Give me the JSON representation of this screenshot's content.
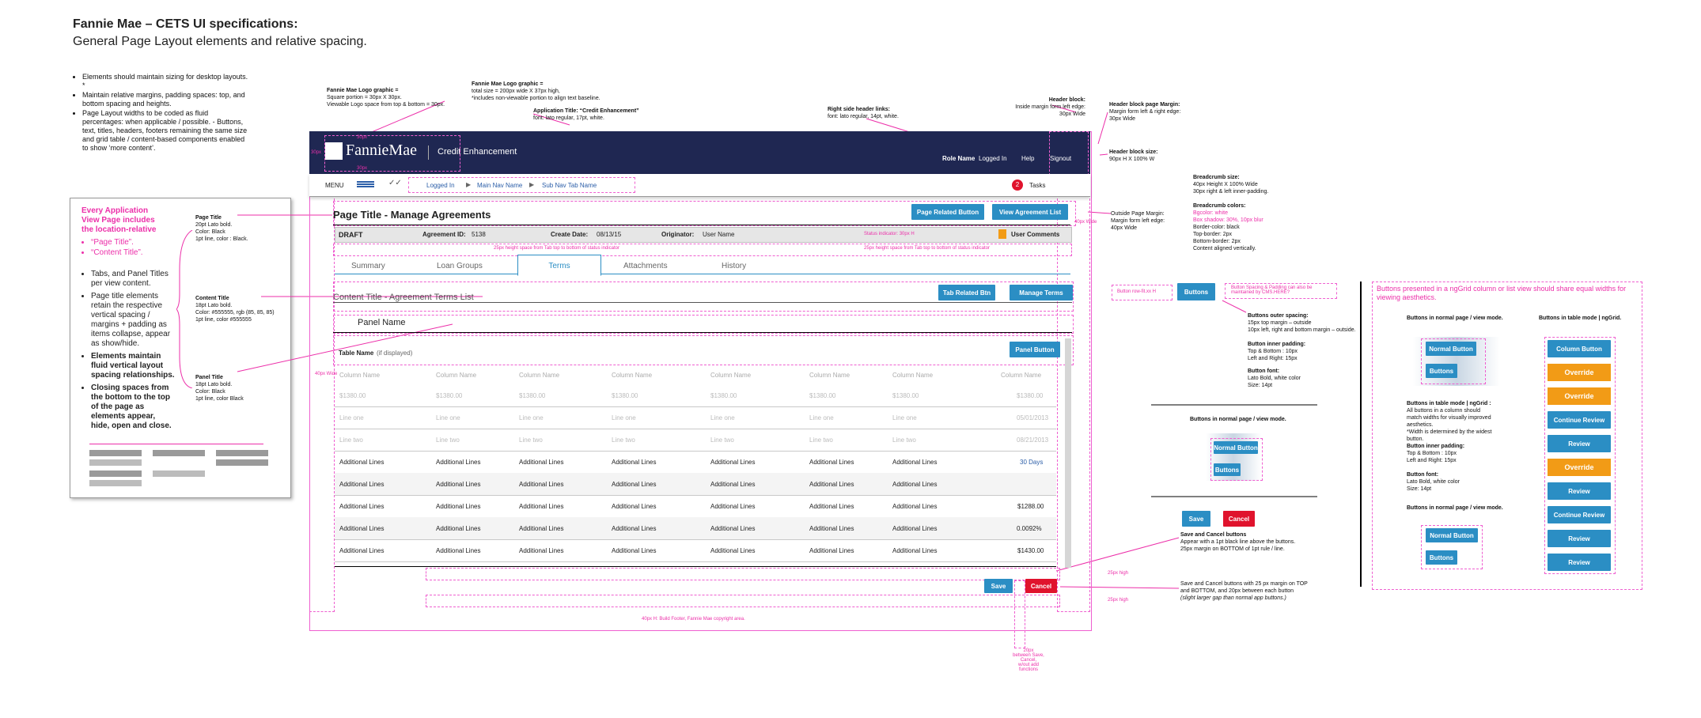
{
  "title": "Fannie Mae – CETS UI specifications:",
  "subtitle": "General Page Layout elements and relative spacing.",
  "intro_bullets": [
    "Elements should maintain sizing for desktop layouts. *",
    "Maintain relative margins, padding spaces: top, and bottom spacing and heights.",
    "Page Layout widths to be coded as fluid percentages: when applicable / possible. - Buttons, text, titles, headers, footers remaining the same size and grid table / content-based components enabled to show ‘more content’."
  ],
  "left_box": {
    "heading": "Every Application View Page includes the location-relative",
    "pink_items": [
      "“Page Title”.",
      "“Content Title”."
    ],
    "bullets": [
      "Tabs, and Panel Titles per view content.",
      "Page title elements retain the respective vertical spacing / margins + padding as items collapse, appear as show/hide."
    ],
    "bold_bullets": [
      "Elements maintain fluid vertical layout spacing relationships.",
      "Closing spaces from the bottom to the top of the page as elements appear, hide, open and close."
    ],
    "page_title_spec": [
      "Page Title",
      "20pt Lato bold.",
      "Color: Black",
      "1pt line, color : Black."
    ],
    "content_title_spec": [
      "Content Title",
      "18pt Lato bold.",
      "Color: #555555, rgb (85, 85, 85)",
      "1pt line, color #555555"
    ],
    "panel_title_spec": [
      "Panel Title",
      "18pt Lato bold.",
      "Color: Black",
      "1pt line, color Black"
    ]
  },
  "top_notes": {
    "logo1": [
      "Fannie Mae Logo graphic =",
      "Square portion = 30px X 30px.",
      "Viewable Logo space from top & bottom = 30px."
    ],
    "logo2": [
      "Fannie Mae Logo graphic =",
      "total size = 200px wide X 37px high,",
      "*includes non-viewable portion to align text baseline."
    ],
    "apptitle": [
      "Application Title: “Credit Enhancement”",
      "font: lato regular, 17pt, white."
    ],
    "header_links": [
      "Right side header links:",
      "font: lato regular, 14pt, white."
    ],
    "header_block": [
      "Header block:",
      "Inside margin form left edge:",
      "30px Wide"
    ],
    "header_margin": [
      "Header block page Margin:",
      "Margin form left & right edge:",
      "30px Wide"
    ],
    "header_size": [
      "Header block size:",
      "90px H X 100% W"
    ],
    "breadcrumb_size": [
      "Breadcrumb size:",
      "40px Height X 100% Wide",
      "30px right & left inner-padding."
    ],
    "breadcrumb_colors": [
      "Breadcrumb colors:",
      "Bgcolor: white",
      "Box shadow: 30%, 10px blur",
      "Border-color: black",
      "Top-border: 2px",
      "Bottom-border: 2px",
      "Content aligned vertically."
    ],
    "outside_margin": [
      "Outside Page Margin:",
      "Margin form left edge:",
      "40px Wide"
    ],
    "buttons_outer": [
      "Buttons outer spacing:",
      "15px top margin – outside",
      "10px left, right and bottom margin – outside."
    ],
    "buttons_inner": [
      "Button inner padding:",
      "Top & Bottom : 10px",
      "Left and Right: 15px"
    ],
    "buttons_font": [
      "Button font:",
      "Lato Bold, white color",
      "Size: 14pt"
    ],
    "save_cancel1": [
      "Save and Cancel buttons",
      "Appear with a 1pt black line above the buttons.",
      "25px margin on BOTTOM of 1pt rule / line."
    ],
    "save_cancel2": [
      "Save and Cancel buttons with 25 px margin on TOP and BOTTOM, and 20px between each button",
      "(slight larger gap than normal app buttons.)"
    ]
  },
  "mock": {
    "logo": "FannieMae",
    "app_title": "Credit Enhancement",
    "header_links": [
      "Role Name",
      "Logged In",
      "Help",
      "Signout"
    ],
    "menu": "MENU",
    "breadcrumbs": [
      "Logged In",
      "Main Nav Name",
      "Sub Nav Tab Name"
    ],
    "tasks_count": "2",
    "tasks_label": "Tasks",
    "page_title": "Page Title - Manage Agreements",
    "page_buttons": [
      "Page Related Button",
      "View Agreement List"
    ],
    "status": {
      "draft": "DRAFT",
      "agreement": "Agreement ID:",
      "agreement_val": "5138",
      "created": "Create Date:",
      "created_val": "08/13/15",
      "originator": "Originator:",
      "originator_val": "User Name",
      "indicator": "Status indicator: 30px H",
      "comments": "User Comments"
    },
    "tab_notes": [
      "25px height space from Tab top to bottom of status indicator",
      "25px height space from Tab top to bottom of status indicator"
    ],
    "tabs": [
      "Summary",
      "Loan Groups",
      "Terms",
      "Attachments",
      "History"
    ],
    "active_tab": "Terms",
    "content_title": "Content Title - Agreement Terms List",
    "content_buttons": [
      "Tab Related Btn",
      "Manage Terms"
    ],
    "panel_name": "Panel Name",
    "table_name": "Table Name",
    "table_name_note": "(if displayed)",
    "panel_button": "Panel Button",
    "col_headers": [
      "Column Name",
      "Column Name",
      "Column Name",
      "Column Name",
      "Column Name",
      "Column Name",
      "Column Name",
      "Column Name"
    ],
    "ghost_rows": [
      [
        "$1380.00",
        "$1380.00",
        "$1380.00",
        "$1380.00",
        "$1380.00",
        "$1380.00",
        "$1380.00",
        "$1380.00"
      ],
      [
        "Line one",
        "Line one",
        "Line one",
        "Line one",
        "Line one",
        "Line one",
        "Line one",
        "05/01/2013"
      ],
      [
        "Line two",
        "Line two",
        "Line two",
        "Line two",
        "Line two",
        "Line two",
        "Line two",
        "08/21/2013"
      ]
    ],
    "rows_label": "Additional Lines",
    "row_values": [
      "30 Days",
      "",
      "$1288.00",
      "0.0092%",
      "$1430.00"
    ],
    "save": "Save",
    "cancel": "Cancel",
    "footer": "40px H: Build Footer, Fannie Mae copyright area.",
    "gap_note": [
      "20px",
      "between Save, Cancel,",
      "w/out add functions"
    ],
    "button_outside_note": "Button row-fit.xx H",
    "button_spacing_note": [
      "Button Spacing & Padding can also be",
      "maintained by CMS.HERE?"
    ],
    "standalone_button": "Buttons"
  },
  "right_panel": {
    "normal_title": "Buttons in normal page / view mode.",
    "normal_button": "Normal Button",
    "buttons": "Buttons",
    "ngrid_heading": "Buttons presented in a ngGrid column or list view should share equal widths for viewing aesthetics.",
    "table_mode_title": "Buttons in table mode | ngGrid.",
    "table_mode_notes": [
      "Buttons in table mode | ngGrid :",
      "All buttons in a column should match widths for visually improved aesthetics.",
      "*Width is determined by the widest button."
    ],
    "inner_padding": [
      "Button inner padding:",
      "Top & Bottom : 10px",
      "Left and Right: 15px"
    ],
    "font": [
      "Button font:",
      "Lato Bold, white color",
      "Size: 14pt"
    ],
    "column_buttons": [
      "Column Button",
      "Override",
      "Override",
      "Continue Review",
      "Review",
      "Override",
      "Review",
      "Continue Review",
      "Review",
      "Review"
    ],
    "column_colors": [
      "blue",
      "orange",
      "orange",
      "blue",
      "blue",
      "orange",
      "blue",
      "blue",
      "blue",
      "blue"
    ],
    "dims": [
      "10px",
      "15px",
      "10px"
    ]
  },
  "spacing_labels": [
    "30px",
    "30px",
    "30px",
    "10px",
    "15px",
    "15px",
    "10px",
    "40px Wide",
    "40px Wide",
    "10px",
    "15px",
    "10px",
    "25px high",
    "25px high",
    "30px",
    "15px"
  ],
  "colors": {
    "header": "#1f2752",
    "button_blue": "#2b8ec4",
    "cancel_red": "#e0132d",
    "override_orange": "#f29b16",
    "guide_pink": "#ec2fa9"
  }
}
